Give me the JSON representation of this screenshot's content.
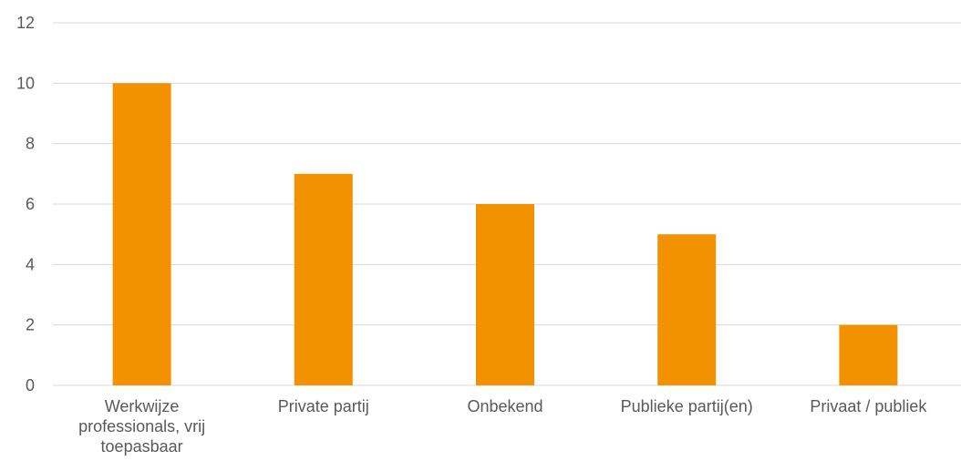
{
  "chart_data": {
    "type": "bar",
    "categories": [
      [
        "Werkwijze",
        "professionals, vrij",
        "toepasbaar"
      ],
      [
        "Private partij"
      ],
      [
        "Onbekend"
      ],
      [
        "Publieke partij(en)"
      ],
      [
        "Privaat / publiek"
      ]
    ],
    "values": [
      10,
      7,
      6,
      5,
      2
    ],
    "ylim": [
      0,
      12
    ],
    "yticks": [
      0,
      2,
      4,
      6,
      8,
      10,
      12
    ],
    "grid": true,
    "legend": "none",
    "bar_color": "#F39200",
    "grid_color": "#D9D9D9",
    "text_color": "#595959"
  }
}
